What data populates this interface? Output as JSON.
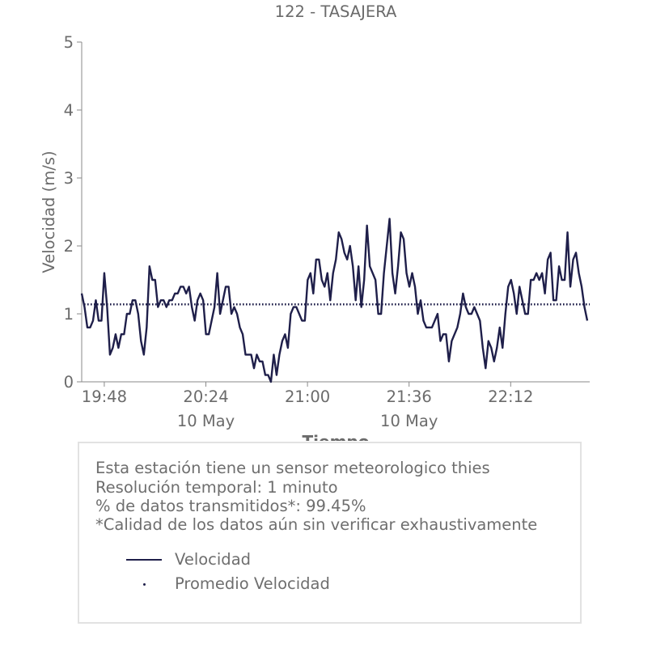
{
  "chart_data": {
    "type": "line",
    "title": "122 - TASAJERA",
    "xlabel": "Tiempo",
    "ylabel": "Velocidad (m/s)",
    "ylim": [
      0,
      5
    ],
    "yticks": [
      "0",
      "1",
      "2",
      "3",
      "4",
      "5"
    ],
    "xticks": [
      {
        "label": "19:48",
        "minutes": 0
      },
      {
        "label": "20:24",
        "minutes": 36
      },
      {
        "label": "21:00",
        "minutes": 72
      },
      {
        "label": "21:36",
        "minutes": 108
      },
      {
        "label": "22:12",
        "minutes": 144
      }
    ],
    "date_labels": [
      {
        "label": "10 May",
        "minutes": 36
      },
      {
        "label": "10 May",
        "minutes": 108
      }
    ],
    "x_start_time": "19:40",
    "x_end_time": "22:40",
    "series": [
      {
        "name": "Velocidad",
        "color": "#1f1f4a",
        "style": "solid",
        "values": [
          1.3,
          1.1,
          0.8,
          0.8,
          0.9,
          1.2,
          0.9,
          0.9,
          1.6,
          1.1,
          0.4,
          0.5,
          0.7,
          0.5,
          0.7,
          0.7,
          1.0,
          1.0,
          1.2,
          1.2,
          1.0,
          0.6,
          0.4,
          0.8,
          1.7,
          1.5,
          1.5,
          1.1,
          1.2,
          1.2,
          1.1,
          1.2,
          1.2,
          1.3,
          1.3,
          1.4,
          1.4,
          1.3,
          1.4,
          1.1,
          0.9,
          1.2,
          1.3,
          1.2,
          0.7,
          0.7,
          0.9,
          1.1,
          1.6,
          1.0,
          1.2,
          1.4,
          1.4,
          1.0,
          1.1,
          1.0,
          0.8,
          0.7,
          0.4,
          0.4,
          0.4,
          0.2,
          0.4,
          0.3,
          0.3,
          0.1,
          0.1,
          0.0,
          0.4,
          0.1,
          0.4,
          0.6,
          0.7,
          0.5,
          1.0,
          1.1,
          1.1,
          1.0,
          0.9,
          0.9,
          1.5,
          1.6,
          1.3,
          1.8,
          1.8,
          1.5,
          1.4,
          1.6,
          1.2,
          1.6,
          1.8,
          2.2,
          2.1,
          1.9,
          1.8,
          2.0,
          1.7,
          1.2,
          1.7,
          1.1,
          1.5,
          2.3,
          1.7,
          1.6,
          1.5,
          1.0,
          1.0,
          1.6,
          2.0,
          2.4,
          1.6,
          1.3,
          1.7,
          2.2,
          2.1,
          1.6,
          1.4,
          1.6,
          1.4,
          1.0,
          1.2,
          0.9,
          0.8,
          0.8,
          0.8,
          0.9,
          1.0,
          0.6,
          0.7,
          0.7,
          0.3,
          0.6,
          0.7,
          0.8,
          1.0,
          1.3,
          1.1,
          1.0,
          1.0,
          1.1,
          1.0,
          0.9,
          0.5,
          0.2,
          0.6,
          0.5,
          0.3,
          0.5,
          0.8,
          0.5,
          1.0,
          1.4,
          1.5,
          1.3,
          1.0,
          1.4,
          1.2,
          1.0,
          1.0,
          1.5,
          1.5,
          1.6,
          1.5,
          1.6,
          1.3,
          1.8,
          1.9,
          1.2,
          1.2,
          1.7,
          1.5,
          1.5,
          2.2,
          1.4,
          1.8,
          1.9,
          1.6,
          1.4,
          1.1,
          0.9
        ]
      },
      {
        "name": "Promedio Velocidad",
        "color": "#1f1f4a",
        "style": "dotted",
        "value": 1.14
      }
    ]
  },
  "info": {
    "lines": [
      "Esta estación tiene un sensor meteorologico thies",
      "Resolución temporal: 1 minuto",
      "% de datos transmitidos*: 99.45%",
      "*Calidad de los datos aún sin verificar exhaustivamente"
    ],
    "legend": [
      {
        "label": "Velocidad",
        "icon": "solid-line-icon"
      },
      {
        "label": "Promedio Velocidad",
        "icon": "dot-icon"
      }
    ]
  }
}
